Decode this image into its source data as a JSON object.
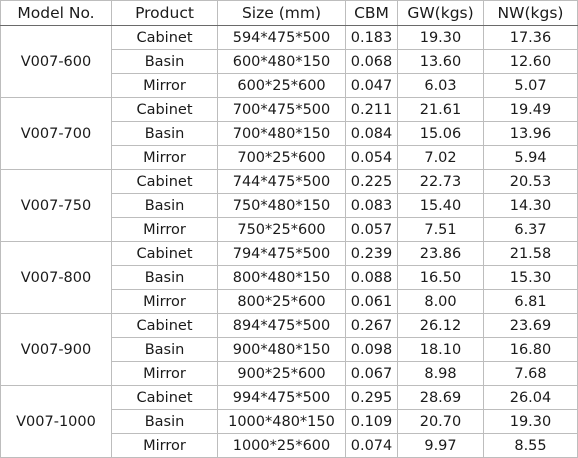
{
  "headers": {
    "model": "Model No.",
    "product": "Product",
    "size": "Size (mm)",
    "cbm": "CBM",
    "gw": "GW(kgs)",
    "nw": "NW(kgs)"
  },
  "groups": [
    {
      "model": "V007-600",
      "rows": [
        {
          "product": "Cabinet",
          "size": "594*475*500",
          "cbm": "0.183",
          "gw": "19.30",
          "nw": "17.36"
        },
        {
          "product": "Basin",
          "size": "600*480*150",
          "cbm": "0.068",
          "gw": "13.60",
          "nw": "12.60"
        },
        {
          "product": "Mirror",
          "size": "600*25*600",
          "cbm": "0.047",
          "gw": "6.03",
          "nw": "5.07"
        }
      ]
    },
    {
      "model": "V007-700",
      "rows": [
        {
          "product": "Cabinet",
          "size": "700*475*500",
          "cbm": "0.211",
          "gw": "21.61",
          "nw": "19.49"
        },
        {
          "product": "Basin",
          "size": "700*480*150",
          "cbm": "0.084",
          "gw": "15.06",
          "nw": "13.96"
        },
        {
          "product": "Mirror",
          "size": "700*25*600",
          "cbm": "0.054",
          "gw": "7.02",
          "nw": "5.94"
        }
      ]
    },
    {
      "model": "V007-750",
      "rows": [
        {
          "product": "Cabinet",
          "size": "744*475*500",
          "cbm": "0.225",
          "gw": "22.73",
          "nw": "20.53"
        },
        {
          "product": "Basin",
          "size": "750*480*150",
          "cbm": "0.083",
          "gw": "15.40",
          "nw": "14.30"
        },
        {
          "product": "Mirror",
          "size": "750*25*600",
          "cbm": "0.057",
          "gw": "7.51",
          "nw": "6.37"
        }
      ]
    },
    {
      "model": "V007-800",
      "rows": [
        {
          "product": "Cabinet",
          "size": "794*475*500",
          "cbm": "0.239",
          "gw": "23.86",
          "nw": "21.58"
        },
        {
          "product": "Basin",
          "size": "800*480*150",
          "cbm": "0.088",
          "gw": "16.50",
          "nw": "15.30"
        },
        {
          "product": "Mirror",
          "size": "800*25*600",
          "cbm": "0.061",
          "gw": "8.00",
          "nw": "6.81"
        }
      ]
    },
    {
      "model": "V007-900",
      "rows": [
        {
          "product": "Cabinet",
          "size": "894*475*500",
          "cbm": "0.267",
          "gw": "26.12",
          "nw": "23.69"
        },
        {
          "product": "Basin",
          "size": "900*480*150",
          "cbm": "0.098",
          "gw": "18.10",
          "nw": "16.80"
        },
        {
          "product": "Mirror",
          "size": "900*25*600",
          "cbm": "0.067",
          "gw": "8.98",
          "nw": "7.68"
        }
      ]
    },
    {
      "model": "V007-1000",
      "rows": [
        {
          "product": "Cabinet",
          "size": "994*475*500",
          "cbm": "0.295",
          "gw": "28.69",
          "nw": "26.04"
        },
        {
          "product": "Basin",
          "size": "1000*480*150",
          "cbm": "0.109",
          "gw": "20.70",
          "nw": "19.30"
        },
        {
          "product": "Mirror",
          "size": "1000*25*600",
          "cbm": "0.074",
          "gw": "9.97",
          "nw": "8.55"
        }
      ]
    }
  ]
}
